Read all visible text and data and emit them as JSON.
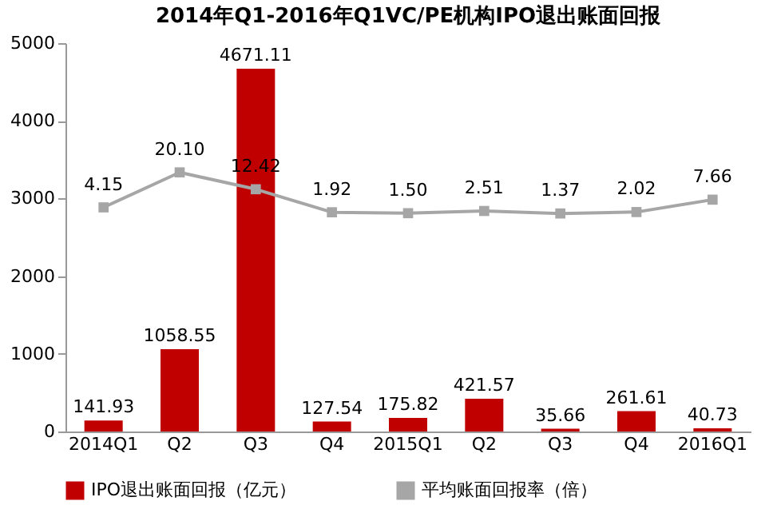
{
  "chart_data": {
    "type": "bar",
    "title": "2014年Q1-2016年Q1VC/PE机构IPO退出账面回报",
    "categories": [
      "2014Q1",
      "Q2",
      "Q3",
      "Q4",
      "2015Q1",
      "Q2",
      "Q3",
      "Q4",
      "2016Q1"
    ],
    "series": [
      {
        "name": "IPO退出账面回报（亿元）",
        "color": "#c00000",
        "values": [
          141.93,
          1058.55,
          4671.11,
          127.54,
          175.82,
          421.57,
          35.66,
          261.61,
          40.73
        ]
      },
      {
        "name": "平均账面回报率（倍）",
        "type": "line",
        "axis": "y2",
        "color": "#a6a6a6",
        "marker": "square",
        "values": [
          4.15,
          20.1,
          12.42,
          1.92,
          1.5,
          2.51,
          1.37,
          2.02,
          7.66
        ],
        "value_labels": [
          "4.15",
          "20.10",
          "12.42",
          "1.92",
          "1.50",
          "2.51",
          "1.37",
          "2.02",
          "7.66"
        ]
      }
    ],
    "ylim": [
      0,
      5000
    ],
    "yticks": [
      0,
      1000,
      2000,
      3000,
      4000,
      5000
    ],
    "y2lim": [
      -98,
      79
    ],
    "data_labels": true,
    "legend": "bottom",
    "grid": false
  }
}
